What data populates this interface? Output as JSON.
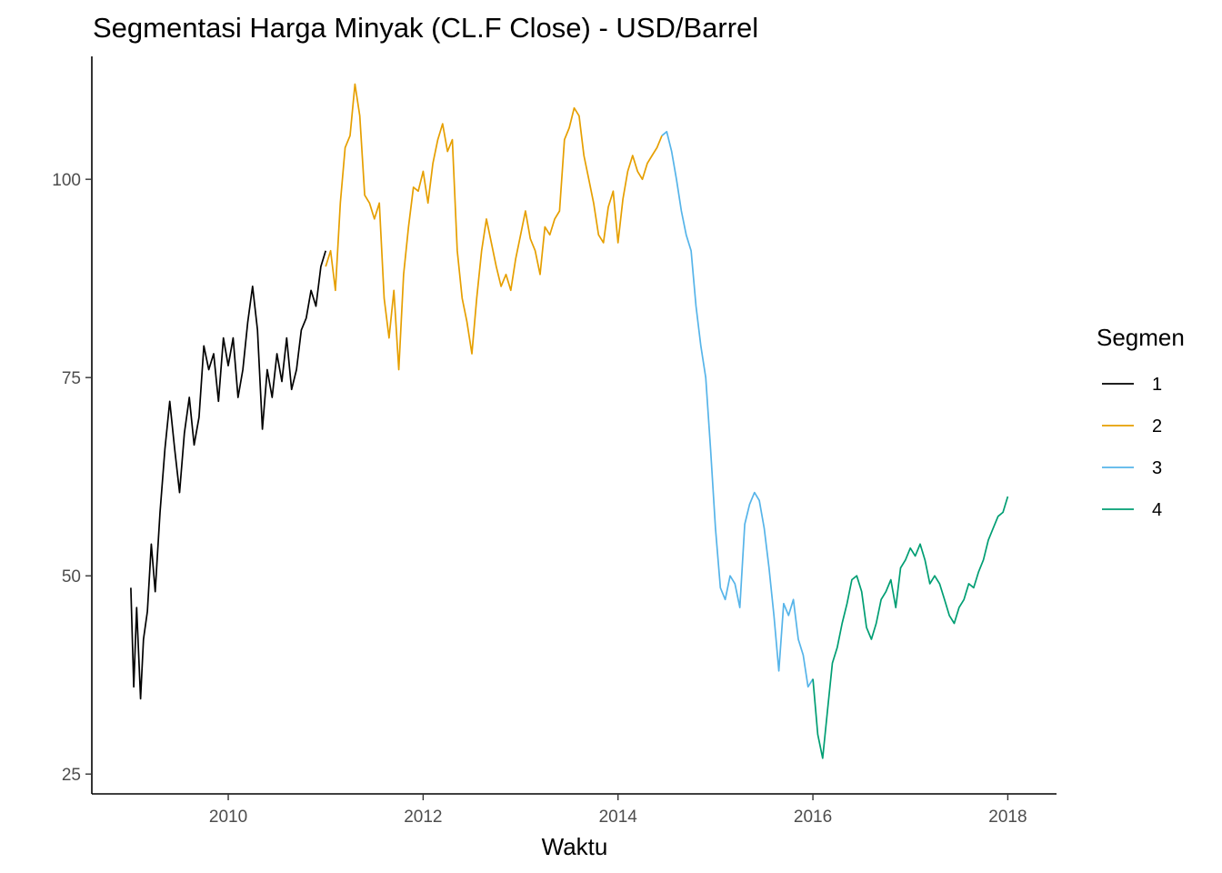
{
  "chart_data": {
    "type": "line",
    "title": "Segmentasi Harga Minyak (CL.F Close) - USD/Barrel",
    "xlabel": "Waktu",
    "ylabel": "",
    "x_ticks": [
      2010,
      2012,
      2014,
      2016,
      2018
    ],
    "y_ticks": [
      25,
      50,
      75,
      100
    ],
    "xlim": [
      2008.6,
      2018.5
    ],
    "ylim": [
      22.5,
      115.5
    ],
    "grid": false,
    "legend": {
      "title": "Segmen",
      "position": "right"
    },
    "series": [
      {
        "name": "1",
        "color": "#000000",
        "x": [
          2009.0,
          2009.03,
          2009.06,
          2009.1,
          2009.13,
          2009.17,
          2009.21,
          2009.25,
          2009.3,
          2009.35,
          2009.4,
          2009.45,
          2009.5,
          2009.55,
          2009.6,
          2009.65,
          2009.7,
          2009.75,
          2009.8,
          2009.85,
          2009.9,
          2009.95,
          2010.0,
          2010.05,
          2010.1,
          2010.15,
          2010.2,
          2010.25,
          2010.3,
          2010.35,
          2010.4,
          2010.45,
          2010.5,
          2010.55,
          2010.6,
          2010.65,
          2010.7,
          2010.75,
          2010.8,
          2010.85,
          2010.9,
          2010.95,
          2011.0
        ],
        "y": [
          48.5,
          36.0,
          46.0,
          34.5,
          42.0,
          45.5,
          54.0,
          48.0,
          58.0,
          66.0,
          72.0,
          66.0,
          60.5,
          68.0,
          72.5,
          66.5,
          70.0,
          79.0,
          76.0,
          78.0,
          72.0,
          80.0,
          76.5,
          80.0,
          72.5,
          76.0,
          82.0,
          86.5,
          81.0,
          68.5,
          76.0,
          72.5,
          78.0,
          74.5,
          80.0,
          73.5,
          76.0,
          81.0,
          82.5,
          86.0,
          84.0,
          89.0,
          91.0
        ]
      },
      {
        "name": "2",
        "color": "#E69F00",
        "x": [
          2011.0,
          2011.05,
          2011.1,
          2011.15,
          2011.2,
          2011.25,
          2011.3,
          2011.35,
          2011.4,
          2011.45,
          2011.5,
          2011.55,
          2011.6,
          2011.65,
          2011.7,
          2011.75,
          2011.8,
          2011.85,
          2011.9,
          2011.95,
          2012.0,
          2012.05,
          2012.1,
          2012.15,
          2012.2,
          2012.25,
          2012.3,
          2012.35,
          2012.4,
          2012.45,
          2012.5,
          2012.55,
          2012.6,
          2012.65,
          2012.7,
          2012.75,
          2012.8,
          2012.85,
          2012.9,
          2012.95,
          2013.0,
          2013.05,
          2013.1,
          2013.15,
          2013.2,
          2013.25,
          2013.3,
          2013.35,
          2013.4,
          2013.45,
          2013.5,
          2013.55,
          2013.6,
          2013.65,
          2013.7,
          2013.75,
          2013.8,
          2013.85,
          2013.9,
          2013.95,
          2014.0,
          2014.05,
          2014.1,
          2014.15,
          2014.2,
          2014.25,
          2014.3,
          2014.35,
          2014.4,
          2014.45
        ],
        "y": [
          89.0,
          91.0,
          86.0,
          97.0,
          104.0,
          105.5,
          112.0,
          108.0,
          98.0,
          97.0,
          95.0,
          97.0,
          85.0,
          80.0,
          86.0,
          76.0,
          88.0,
          94.0,
          99.0,
          98.5,
          101.0,
          97.0,
          102.0,
          105.0,
          107.0,
          103.5,
          105.0,
          91.0,
          85.0,
          82.0,
          78.0,
          85.0,
          91.0,
          95.0,
          92.0,
          89.0,
          86.5,
          88.0,
          86.0,
          90.0,
          93.0,
          96.0,
          92.5,
          91.0,
          88.0,
          94.0,
          93.0,
          95.0,
          96.0,
          105.0,
          106.5,
          109.0,
          108.0,
          103.0,
          100.0,
          97.0,
          93.0,
          92.0,
          96.5,
          98.5,
          92.0,
          97.5,
          101.0,
          103.0,
          101.0,
          100.0,
          102.0,
          103.0,
          104.0,
          105.5
        ]
      },
      {
        "name": "3",
        "color": "#56B4E9",
        "x": [
          2014.45,
          2014.5,
          2014.55,
          2014.6,
          2014.65,
          2014.7,
          2014.75,
          2014.8,
          2014.85,
          2014.9,
          2014.95,
          2015.0,
          2015.05,
          2015.1,
          2015.15,
          2015.2,
          2015.25,
          2015.3,
          2015.35,
          2015.4,
          2015.45,
          2015.5,
          2015.55,
          2015.6,
          2015.65,
          2015.7,
          2015.75,
          2015.8,
          2015.85,
          2015.9,
          2015.95,
          2016.0
        ],
        "y": [
          105.5,
          106.0,
          103.5,
          100.0,
          96.0,
          93.0,
          91.0,
          84.0,
          79.0,
          75.0,
          66.0,
          56.0,
          48.5,
          47.0,
          50.0,
          49.0,
          46.0,
          56.5,
          59.0,
          60.5,
          59.5,
          56.0,
          51.0,
          45.0,
          38.0,
          46.5,
          45.0,
          47.0,
          42.0,
          40.0,
          36.0,
          37.0
        ]
      },
      {
        "name": "4",
        "color": "#009E73",
        "x": [
          2016.0,
          2016.05,
          2016.1,
          2016.15,
          2016.2,
          2016.25,
          2016.3,
          2016.35,
          2016.4,
          2016.45,
          2016.5,
          2016.55,
          2016.6,
          2016.65,
          2016.7,
          2016.75,
          2016.8,
          2016.85,
          2016.9,
          2016.95,
          2017.0,
          2017.05,
          2017.1,
          2017.15,
          2017.2,
          2017.25,
          2017.3,
          2017.35,
          2017.4,
          2017.45,
          2017.5,
          2017.55,
          2017.6,
          2017.65,
          2017.7,
          2017.75,
          2017.8,
          2017.85,
          2017.9,
          2017.95,
          2018.0
        ],
        "y": [
          37.0,
          30.0,
          27.0,
          33.0,
          39.0,
          41.0,
          44.0,
          46.5,
          49.5,
          50.0,
          48.0,
          43.5,
          42.0,
          44.0,
          47.0,
          48.0,
          49.5,
          46.0,
          51.0,
          52.0,
          53.5,
          52.5,
          54.0,
          52.0,
          49.0,
          50.0,
          49.0,
          47.0,
          45.0,
          44.0,
          46.0,
          47.0,
          49.0,
          48.5,
          50.5,
          52.0,
          54.5,
          56.0,
          57.5,
          58.0,
          60.0
        ]
      }
    ]
  }
}
